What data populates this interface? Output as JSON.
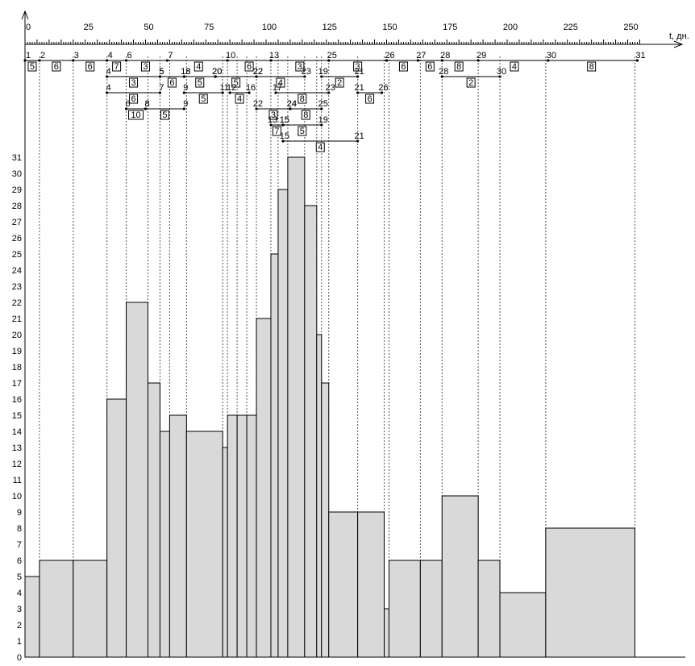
{
  "chart_data": {
    "type": "bar",
    "title": "",
    "xlabel": "t, дн.",
    "ylabel": "",
    "xlim": [
      0,
      262
    ],
    "ylim": [
      0,
      31
    ],
    "x_ticks": [
      0,
      25,
      50,
      75,
      100,
      125,
      150,
      175,
      200,
      225,
      250
    ],
    "y_ticks": [
      0,
      1,
      2,
      3,
      4,
      5,
      6,
      7,
      8,
      9,
      10,
      11,
      12,
      13,
      14,
      15,
      16,
      17,
      18,
      19,
      20,
      21,
      22,
      23,
      24,
      25,
      26,
      27,
      28,
      29,
      30,
      31
    ],
    "grid_x": true,
    "events": [
      {
        "id": "1",
        "t": 0
      },
      {
        "id": "2",
        "t": 6
      },
      {
        "id": "3",
        "t": 20
      },
      {
        "id": "4",
        "t": 34
      },
      {
        "id": "6",
        "t": 42
      },
      {
        "id": "7",
        "t": 59
      },
      {
        "id": "10",
        "t": 84
      },
      {
        "id": "13",
        "t": 102
      },
      {
        "id": "25",
        "t": 126
      },
      {
        "id": "26",
        "t": 150
      },
      {
        "id": "27",
        "t": 163
      },
      {
        "id": "28",
        "t": 173
      },
      {
        "id": "29",
        "t": 188
      },
      {
        "id": "30",
        "t": 217
      },
      {
        "id": "31",
        "t": 254
      }
    ],
    "durations_row": [
      {
        "label": "5",
        "t": 3
      },
      {
        "label": "6",
        "t": 13
      },
      {
        "label": "6",
        "t": 27
      },
      {
        "label": "7",
        "t": 38
      },
      {
        "label": "3",
        "t": 50
      },
      {
        "label": "4",
        "t": 72
      },
      {
        "label": "6",
        "t": 93
      },
      {
        "label": "3",
        "t": 114
      },
      {
        "label": "3",
        "t": 138
      },
      {
        "label": "6",
        "t": 157
      },
      {
        "label": "6",
        "t": 168
      },
      {
        "label": "8",
        "t": 180
      },
      {
        "label": "4",
        "t": 203
      },
      {
        "label": "8",
        "t": 235
      }
    ],
    "tasks": [
      {
        "from": "4",
        "to": "5",
        "t1": 34,
        "t2": 56,
        "dur": "3",
        "row": 1
      },
      {
        "from": "18",
        "to": "20",
        "t1": 66,
        "t2": 79,
        "dur": "5",
        "row": 1
      },
      {
        "from": "5",
        "to": "18",
        "t1": 56,
        "t2": 66,
        "dur": "6",
        "row": 1
      },
      {
        "from": "20",
        "to": "22",
        "t1": 79,
        "t2": 96,
        "dur": "5",
        "row": 1
      },
      {
        "from": "22",
        "to": "23",
        "t1": 96,
        "t2": 116,
        "dur": "4",
        "row": 1
      },
      {
        "from": "19",
        "to": "21",
        "t1": 123,
        "t2": 138,
        "dur": "2",
        "row": 1
      },
      {
        "from": "28",
        "to": "30",
        "t1": 173,
        "t2": 197,
        "dur": "2",
        "row": 1
      },
      {
        "from": "4",
        "to": "7",
        "t1": 34,
        "t2": 56,
        "dur": "6",
        "row": 2
      },
      {
        "from": "9",
        "to": "11",
        "t1": 66,
        "t2": 82,
        "dur": "5",
        "row": 2
      },
      {
        "from": "12",
        "to": "16",
        "t1": 85,
        "t2": 93,
        "dur": "4",
        "row": 2
      },
      {
        "from": "17",
        "to": "23",
        "t1": 104,
        "t2": 126,
        "dur": "8",
        "row": 2
      },
      {
        "from": "21",
        "to": "26",
        "t1": 138,
        "t2": 148,
        "dur": "6",
        "row": 2
      },
      {
        "from": "6",
        "to": "8",
        "t1": 42,
        "t2": 50,
        "dur": "10",
        "row": 3
      },
      {
        "from": "8",
        "to": "9",
        "t1": 50,
        "t2": 66,
        "dur": "5",
        "row": 3
      },
      {
        "from": "22",
        "to": "24",
        "t1": 96,
        "t2": 110,
        "dur": "3",
        "row": 3
      },
      {
        "from": "24",
        "to": "25",
        "t1": 110,
        "t2": 123,
        "dur": "8",
        "row": 3
      },
      {
        "from": "13",
        "to": "15",
        "t1": 102,
        "t2": 107,
        "dur": "7",
        "row": 4
      },
      {
        "from": "15",
        "to": "19",
        "t1": 107,
        "t2": 123,
        "dur": "5",
        "row": 4
      },
      {
        "from": "15",
        "to": "21",
        "t1": 107,
        "t2": 138,
        "dur": "4",
        "row": 5
      }
    ],
    "bars": [
      {
        "x0": 0,
        "x1": 6,
        "value": 5
      },
      {
        "x0": 6,
        "x1": 20,
        "value": 6
      },
      {
        "x0": 20,
        "x1": 34,
        "value": 6
      },
      {
        "x0": 34,
        "x1": 42,
        "value": 16
      },
      {
        "x0": 42,
        "x1": 51,
        "value": 22
      },
      {
        "x0": 51,
        "x1": 56,
        "value": 17
      },
      {
        "x0": 56,
        "x1": 60,
        "value": 14
      },
      {
        "x0": 60,
        "x1": 67,
        "value": 15
      },
      {
        "x0": 67,
        "x1": 82,
        "value": 14
      },
      {
        "x0": 82,
        "x1": 84,
        "value": 13
      },
      {
        "x0": 84,
        "x1": 88,
        "value": 15
      },
      {
        "x0": 88,
        "x1": 92,
        "value": 15
      },
      {
        "x0": 92,
        "x1": 96,
        "value": 15
      },
      {
        "x0": 96,
        "x1": 102,
        "value": 21
      },
      {
        "x0": 102,
        "x1": 105,
        "value": 25
      },
      {
        "x0": 105,
        "x1": 109,
        "value": 29
      },
      {
        "x0": 109,
        "x1": 116,
        "value": 31
      },
      {
        "x0": 116,
        "x1": 121,
        "value": 28
      },
      {
        "x0": 121,
        "x1": 123,
        "value": 20
      },
      {
        "x0": 123,
        "x1": 126,
        "value": 17
      },
      {
        "x0": 126,
        "x1": 138,
        "value": 9
      },
      {
        "x0": 138,
        "x1": 149,
        "value": 9
      },
      {
        "x0": 149,
        "x1": 151,
        "value": 3
      },
      {
        "x0": 151,
        "x1": 164,
        "value": 6
      },
      {
        "x0": 164,
        "x1": 173,
        "value": 6
      },
      {
        "x0": 173,
        "x1": 188,
        "value": 10
      },
      {
        "x0": 188,
        "x1": 197,
        "value": 6
      },
      {
        "x0": 197,
        "x1": 216,
        "value": 4
      },
      {
        "x0": 216,
        "x1": 253,
        "value": 8
      }
    ]
  }
}
